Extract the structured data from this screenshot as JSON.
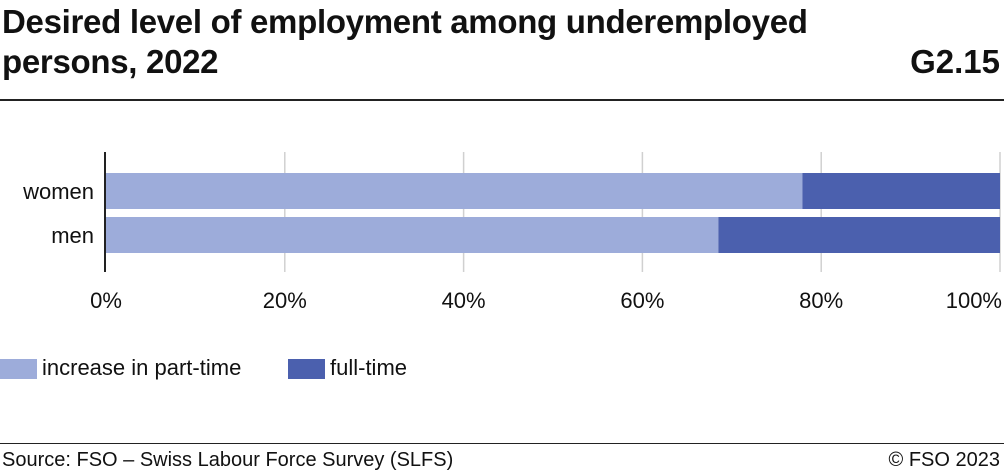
{
  "title": "Desired level of employment among underemployed persons, 2022",
  "figure_code": "G2.15",
  "source": "Source: FSO – Swiss Labour Force Survey (SLFS)",
  "copyright": "© FSO 2023",
  "colors": {
    "part_time": "#9dacda",
    "full_time": "#4b60ae",
    "grid": "#d0d0d0",
    "axis": "#222222"
  },
  "chart_data": {
    "type": "bar",
    "orientation": "horizontal",
    "stacked": true,
    "categories": [
      "women",
      "men"
    ],
    "series": [
      {
        "name": "increase in part-time",
        "values": [
          77.9,
          68.5
        ]
      },
      {
        "name": "full-time",
        "values": [
          22.1,
          31.5
        ]
      }
    ],
    "xlim": [
      0,
      100
    ],
    "xticks": [
      0,
      20,
      40,
      60,
      80,
      100
    ],
    "xtick_labels": [
      "0%",
      "20%",
      "40%",
      "60%",
      "80%",
      "100%"
    ],
    "grid": true,
    "legend_position": "bottom-left"
  }
}
